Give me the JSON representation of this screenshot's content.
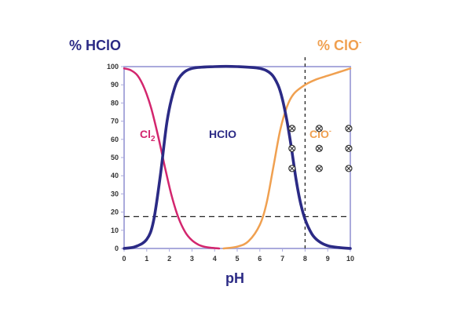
{
  "chart_data": {
    "type": "line",
    "title": "",
    "xlabel": "pH",
    "ylabel_left": "% HClO",
    "ylabel_right": "% ClO",
    "ylabel_right_sup": "-",
    "xlim": [
      0,
      10
    ],
    "ylim": [
      0,
      100
    ],
    "x_ticks": [
      "0",
      "1",
      "2",
      "3",
      "4",
      "5",
      "6",
      "7",
      "8",
      "9",
      "10"
    ],
    "y_ticks": [
      "0",
      "10",
      "20",
      "30",
      "40",
      "50",
      "60",
      "70",
      "80",
      "90",
      "100"
    ],
    "colors": {
      "cl2": "#d3266e",
      "hclo": "#2b2a85",
      "clo": "#f0a050",
      "frame": "#aaaadc",
      "reference": "#222222",
      "hclo_title": "#2b2a85",
      "clo_title": "#f0a050"
    },
    "series": [
      {
        "name": "Cl",
        "name_sub": "2",
        "label_key": "cl2",
        "x": [
          0,
          0.3,
          0.6,
          0.9,
          1.2,
          1.5,
          1.8,
          2.1,
          2.4,
          2.7,
          3.0,
          3.3,
          3.6,
          3.9,
          4.2
        ],
        "y": [
          99,
          98,
          95,
          88,
          77,
          62,
          45,
          29,
          17,
          9,
          4.5,
          2,
          0.8,
          0.3,
          0
        ]
      },
      {
        "name": "HClO",
        "label_key": "hclo",
        "x": [
          0,
          0.5,
          1.0,
          1.3,
          1.6,
          1.9,
          2.2,
          2.5,
          3.0,
          4.0,
          5.0,
          6.0,
          6.5,
          6.8,
          7.0,
          7.2,
          7.4,
          7.6,
          7.8,
          8.0,
          8.3,
          8.6,
          9.0,
          9.5,
          10.0
        ],
        "y": [
          0,
          1,
          5,
          15,
          40,
          70,
          87,
          95,
          99,
          100,
          100,
          99,
          96,
          90,
          82,
          70,
          55,
          38,
          25,
          16,
          8,
          4,
          1.5,
          0.5,
          0
        ]
      },
      {
        "name": "ClO",
        "name_sup": "-",
        "label_key": "clo",
        "x": [
          4.4,
          5.0,
          5.5,
          6.0,
          6.3,
          6.6,
          6.9,
          7.2,
          7.5,
          8.0,
          8.5,
          9.0,
          9.5,
          10.0
        ],
        "y": [
          0,
          1,
          4,
          13,
          25,
          45,
          65,
          78,
          85,
          90,
          93,
          95,
          97,
          99
        ]
      }
    ],
    "reference_lines": [
      {
        "orientation": "horizontal",
        "value": 17.5
      },
      {
        "orientation": "vertical",
        "value": 8
      }
    ],
    "annotations": [
      {
        "text": "Cl",
        "sub": "2",
        "series": "cl2"
      },
      {
        "text": "HClO",
        "series": "hclo"
      },
      {
        "text": "ClO",
        "sup": "-",
        "series": "clo"
      }
    ],
    "markers": {
      "symbol": "⊗",
      "points": [
        [
          7.7,
          66
        ],
        [
          7.7,
          55
        ],
        [
          7.7,
          44
        ],
        [
          8.9,
          66
        ],
        [
          8.9,
          55
        ],
        [
          8.9,
          44
        ],
        [
          10.0,
          66
        ],
        [
          10.0,
          55
        ],
        [
          10.0,
          44
        ]
      ]
    },
    "grid": false,
    "legend": "none"
  }
}
